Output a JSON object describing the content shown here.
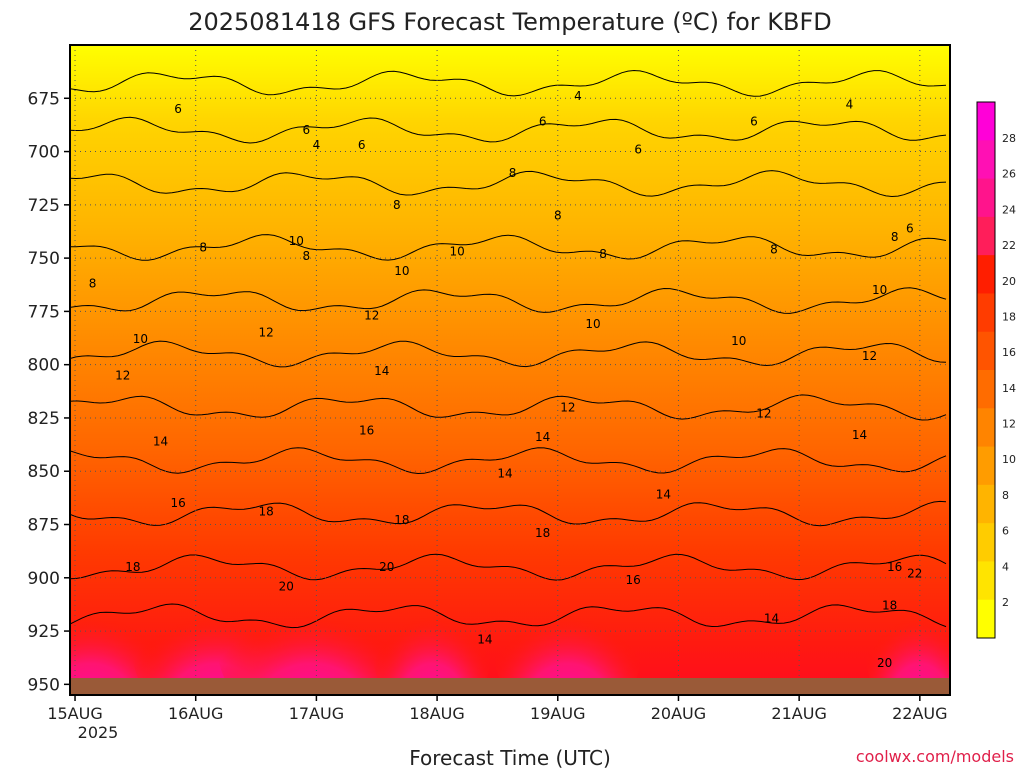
{
  "chart_data": {
    "type": "heatmap",
    "title": "2025081418 GFS Forecast Temperature (ºC) for KBFD",
    "xlabel": "Forecast Time (UTC)",
    "ylabel": "",
    "watermark": "coolwx.com/models",
    "y_ticks": [
      "675",
      "700",
      "725",
      "750",
      "775",
      "800",
      "825",
      "850",
      "875",
      "900",
      "925",
      "950"
    ],
    "y_values": [
      675,
      700,
      725,
      750,
      775,
      800,
      825,
      850,
      875,
      900,
      925,
      950
    ],
    "ylim": [
      650,
      955
    ],
    "y_reversed": true,
    "x_ticks": [
      "15AUG",
      "16AUG",
      "17AUG",
      "18AUG",
      "19AUG",
      "20AUG",
      "21AUG",
      "22AUG"
    ],
    "x_sublabel": "2025",
    "x_tick_hours": [
      0,
      24,
      48,
      72,
      96,
      120,
      144,
      168
    ],
    "xlim_hours": [
      -1,
      174
    ],
    "colorbar": {
      "ticks": [
        "2",
        "4",
        "6",
        "8",
        "10",
        "12",
        "14",
        "16",
        "18",
        "20",
        "22",
        "24",
        "26",
        "28"
      ],
      "levels": [
        2,
        4,
        6,
        8,
        10,
        12,
        14,
        16,
        18,
        20,
        22,
        24,
        26,
        28
      ],
      "colors": [
        "#ffff00",
        "#ffe400",
        "#ffcc00",
        "#ffb400",
        "#ff9c00",
        "#ff8400",
        "#ff6c00",
        "#ff5400",
        "#ff3c00",
        "#ff1e00",
        "#ff1e5a",
        "#ff148c",
        "#ff10b4",
        "#ff00d8"
      ]
    },
    "grid": "dotted",
    "contour_labels": [
      {
        "t": 20.5,
        "p": 680,
        "text": "6"
      },
      {
        "t": 46.0,
        "p": 690,
        "text": "6"
      },
      {
        "t": 48.0,
        "p": 697,
        "text": "4"
      },
      {
        "t": 57.0,
        "p": 697,
        "text": "6"
      },
      {
        "t": 100.0,
        "p": 674,
        "text": "4"
      },
      {
        "t": 93.0,
        "p": 686,
        "text": "6"
      },
      {
        "t": 112.0,
        "p": 699,
        "text": "6"
      },
      {
        "t": 135.0,
        "p": 686,
        "text": "6"
      },
      {
        "t": 154.0,
        "p": 678,
        "text": "4"
      },
      {
        "t": 87.0,
        "p": 710,
        "text": "8"
      },
      {
        "t": 64.0,
        "p": 725,
        "text": "8"
      },
      {
        "t": 96.0,
        "p": 730,
        "text": "8"
      },
      {
        "t": 25.5,
        "p": 745,
        "text": "8"
      },
      {
        "t": 46.0,
        "p": 749,
        "text": "8"
      },
      {
        "t": 44.0,
        "p": 742,
        "text": "10"
      },
      {
        "t": 76.0,
        "p": 747,
        "text": "10"
      },
      {
        "t": 65.0,
        "p": 756,
        "text": "10"
      },
      {
        "t": 105.0,
        "p": 748,
        "text": "8"
      },
      {
        "t": 139.0,
        "p": 746,
        "text": "8"
      },
      {
        "t": 163.0,
        "p": 740,
        "text": "8"
      },
      {
        "t": 166.0,
        "p": 736,
        "text": "6"
      },
      {
        "t": 3.5,
        "p": 762,
        "text": "8"
      },
      {
        "t": 59.0,
        "p": 777,
        "text": "12"
      },
      {
        "t": 38.0,
        "p": 785,
        "text": "12"
      },
      {
        "t": 13.0,
        "p": 788,
        "text": "10"
      },
      {
        "t": 103.0,
        "p": 781,
        "text": "10"
      },
      {
        "t": 132.0,
        "p": 789,
        "text": "10"
      },
      {
        "t": 160.0,
        "p": 765,
        "text": "10"
      },
      {
        "t": 9.5,
        "p": 805,
        "text": "12"
      },
      {
        "t": 61.0,
        "p": 803,
        "text": "14"
      },
      {
        "t": 98.0,
        "p": 820,
        "text": "12"
      },
      {
        "t": 137.0,
        "p": 823,
        "text": "12"
      },
      {
        "t": 158.0,
        "p": 796,
        "text": "12"
      },
      {
        "t": 17.0,
        "p": 836,
        "text": "14"
      },
      {
        "t": 58.0,
        "p": 831,
        "text": "16"
      },
      {
        "t": 93.0,
        "p": 834,
        "text": "14"
      },
      {
        "t": 85.5,
        "p": 851,
        "text": "14"
      },
      {
        "t": 117.0,
        "p": 861,
        "text": "14"
      },
      {
        "t": 156.0,
        "p": 833,
        "text": "14"
      },
      {
        "t": 20.5,
        "p": 865,
        "text": "16"
      },
      {
        "t": 38.0,
        "p": 869,
        "text": "18"
      },
      {
        "t": 65.0,
        "p": 873,
        "text": "18"
      },
      {
        "t": 62.0,
        "p": 895,
        "text": "20"
      },
      {
        "t": 93.0,
        "p": 879,
        "text": "18"
      },
      {
        "t": 11.5,
        "p": 895,
        "text": "18"
      },
      {
        "t": 42.0,
        "p": 904,
        "text": "20"
      },
      {
        "t": 81.5,
        "p": 929,
        "text": "14"
      },
      {
        "t": 111.0,
        "p": 901,
        "text": "16"
      },
      {
        "t": 138.5,
        "p": 919,
        "text": "14"
      },
      {
        "t": 163.0,
        "p": 895,
        "text": "16"
      },
      {
        "t": 167.0,
        "p": 898,
        "text": "22"
      },
      {
        "t": 162.0,
        "p": 913,
        "text": "18"
      },
      {
        "t": 161.0,
        "p": 940,
        "text": "20"
      }
    ]
  }
}
